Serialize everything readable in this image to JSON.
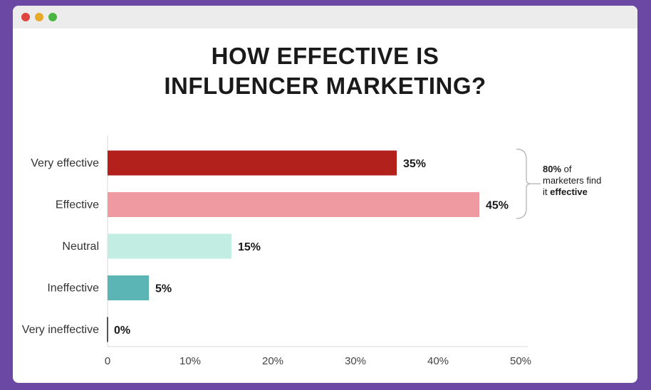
{
  "window": {
    "controls": [
      "close",
      "minimize",
      "maximize"
    ]
  },
  "chart_data": {
    "type": "bar",
    "orientation": "horizontal",
    "title_lines": [
      "HOW EFFECTIVE IS",
      "INFLUENCER MARKETING?"
    ],
    "categories": [
      "Very effective",
      "Effective",
      "Neutral",
      "Ineffective",
      "Very ineffective"
    ],
    "values": [
      35,
      45,
      15,
      5,
      0
    ],
    "value_labels": [
      "35%",
      "45%",
      "15%",
      "5%",
      "0%"
    ],
    "colors": [
      "#b3211d",
      "#ef9aa1",
      "#c2ede3",
      "#5bb5b4",
      "#555555"
    ],
    "xlim": [
      0,
      50
    ],
    "x_ticks": [
      0,
      10,
      20,
      30,
      40,
      50
    ],
    "x_tick_labels": [
      "0",
      "10%",
      "20%",
      "30%",
      "40%",
      "50%"
    ],
    "grid": false,
    "annotation": {
      "bracket_categories": [
        "Very effective",
        "Effective"
      ],
      "bold_value": "80%",
      "text_middle": " of marketers find it ",
      "bold_end": "effective"
    }
  }
}
